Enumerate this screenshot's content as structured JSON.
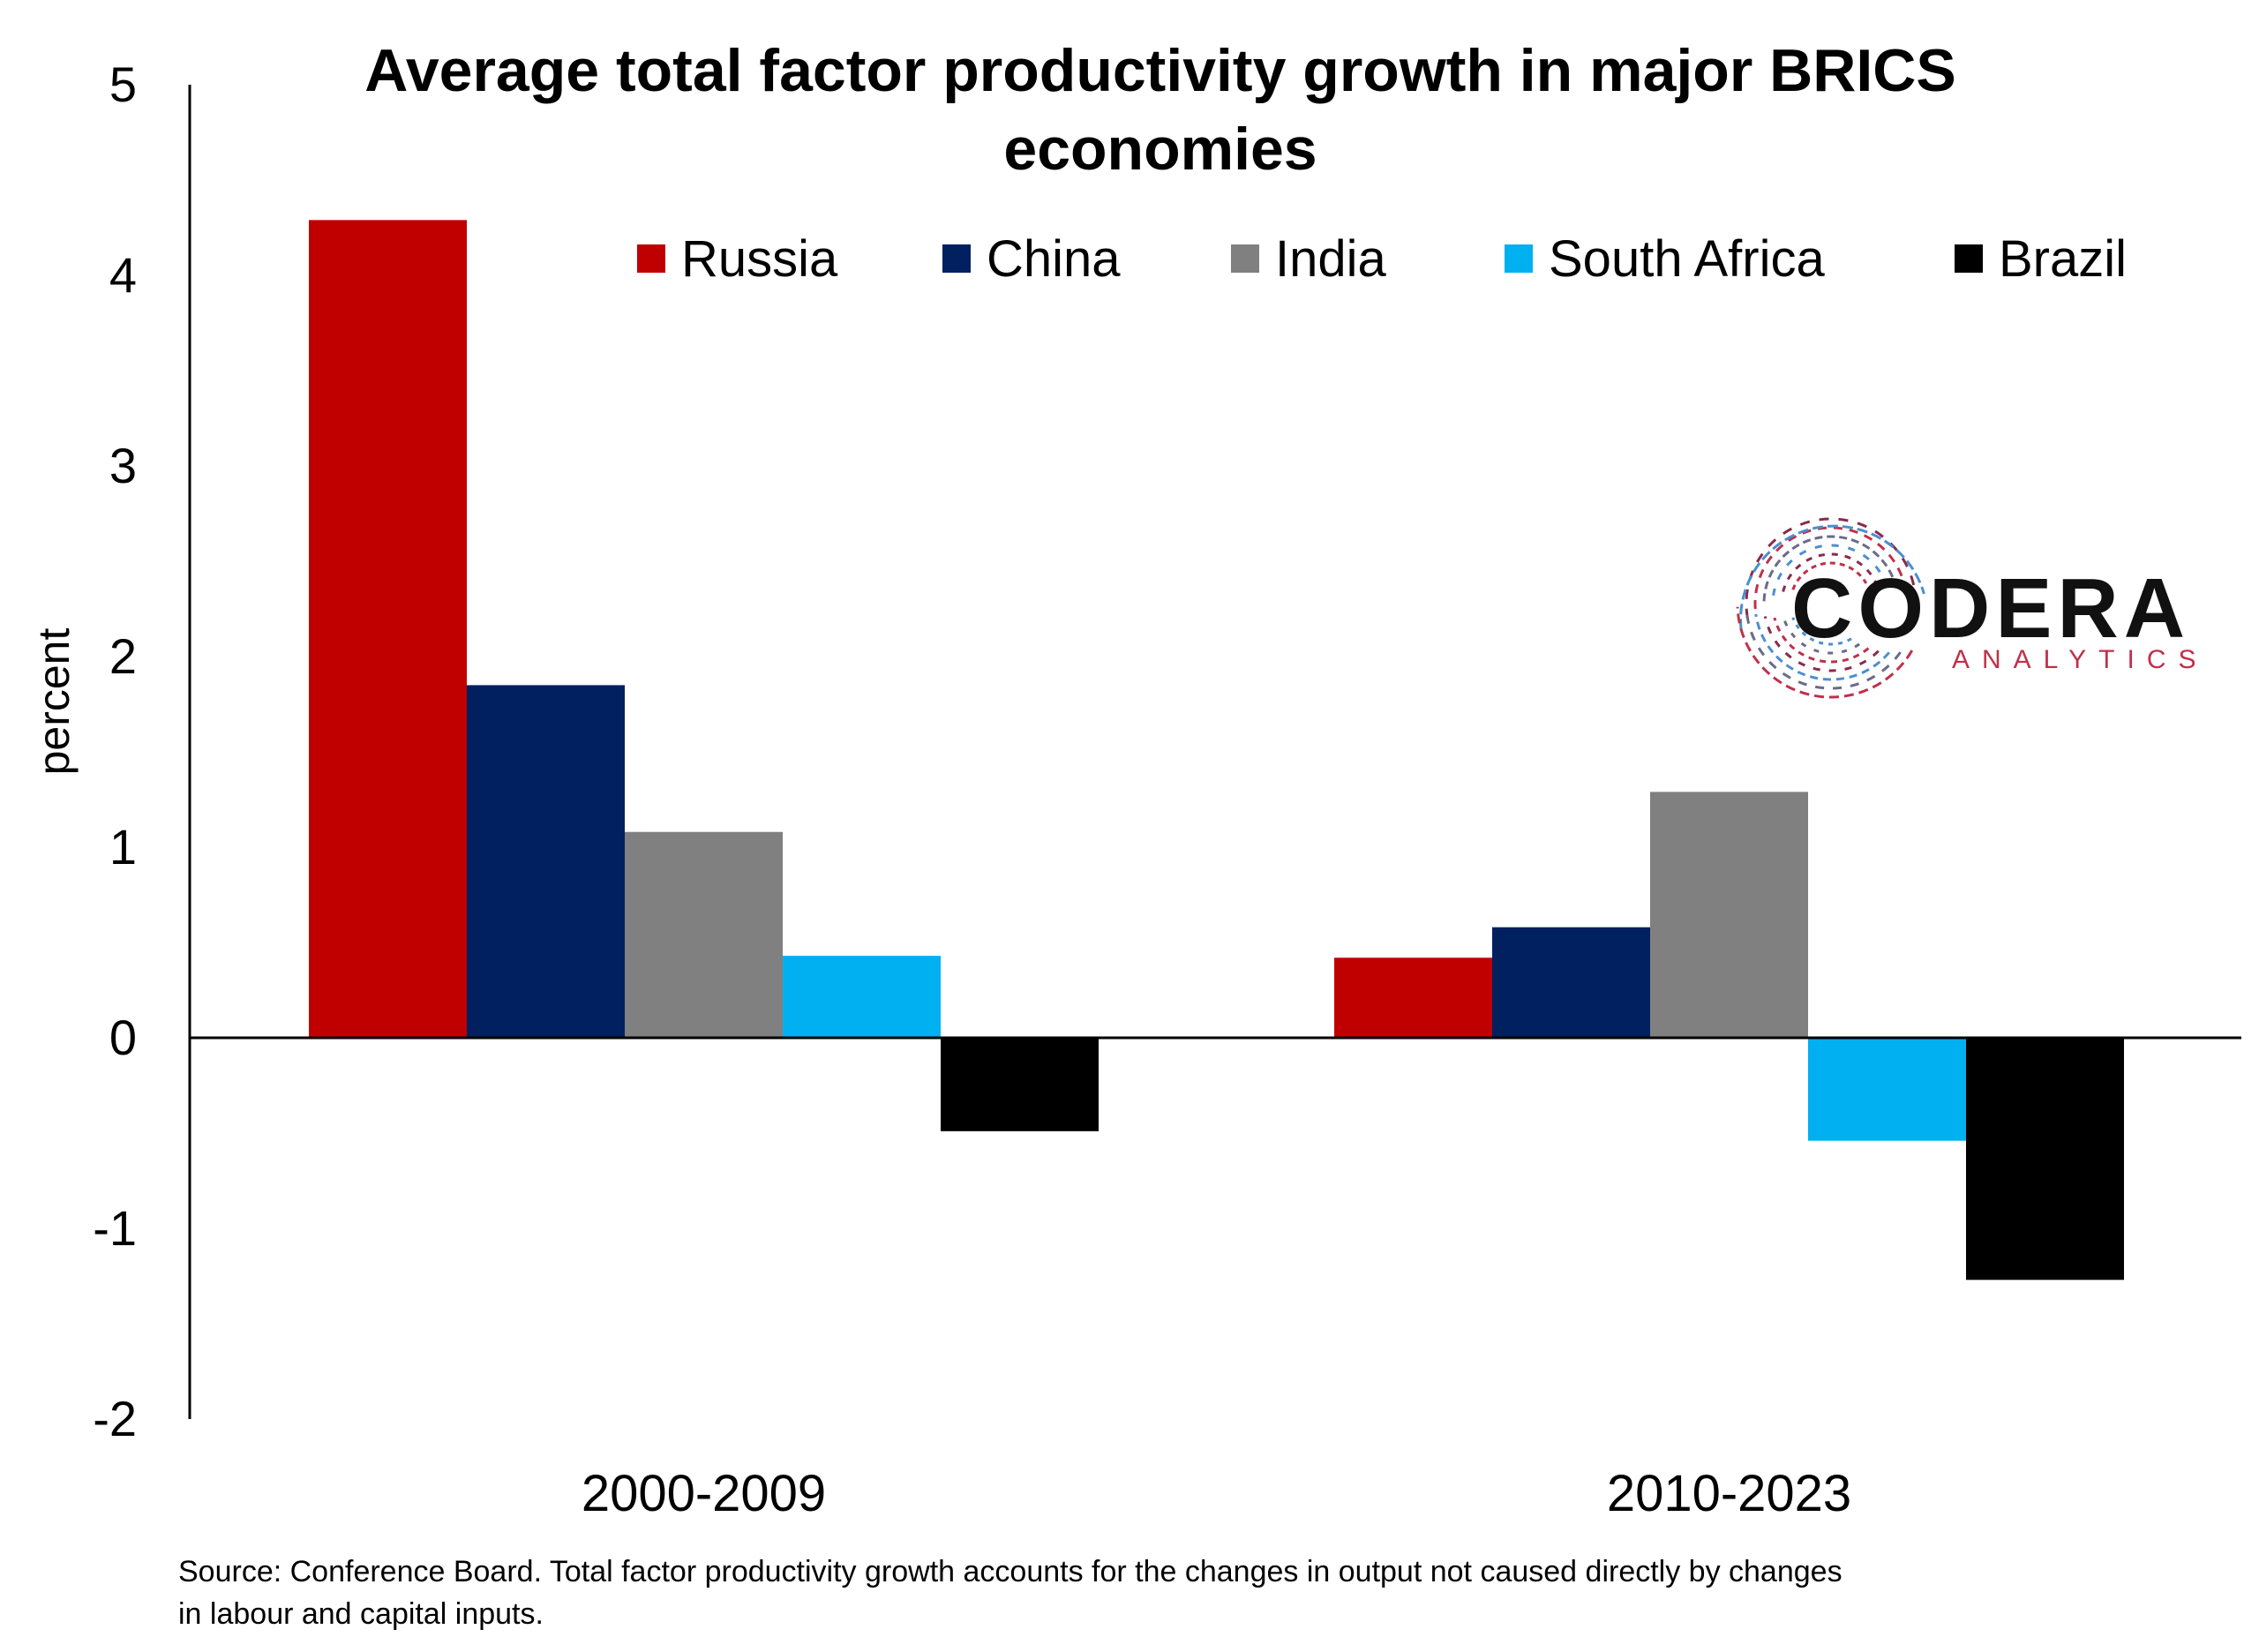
{
  "chart_data": {
    "type": "bar",
    "title_lines": [
      "Average total factor productivity growth in major BRICS",
      "economies"
    ],
    "xlabel": "",
    "ylabel": "percent",
    "ylim": [
      -2,
      5
    ],
    "yticks": [
      5,
      4,
      3,
      2,
      1,
      0,
      -1,
      -2
    ],
    "categories": [
      "2000-2009",
      "2010-2023"
    ],
    "legend_position": "top",
    "grid": false,
    "series": [
      {
        "name": "Russia",
        "color": "#C00000",
        "values": [
          4.29,
          0.42
        ]
      },
      {
        "name": "China",
        "color": "#002060",
        "values": [
          1.85,
          0.58
        ]
      },
      {
        "name": "India",
        "color": "#808080",
        "values": [
          1.08,
          1.29
        ]
      },
      {
        "name": "South Africa",
        "color": "#00B0F0",
        "values": [
          0.43,
          -0.54
        ]
      },
      {
        "name": "Brazil",
        "color": "#000000",
        "values": [
          -0.49,
          -1.27
        ]
      }
    ],
    "source_lines": [
      "Source: Conference Board. Total factor productivity growth accounts for the changes in output not caused directly by changes",
      "in labour and capital inputs."
    ]
  },
  "logo": {
    "name": "CODERA",
    "tagline": "ANALYTICS",
    "accent_color": "#C0304A",
    "accent_color_2": "#4A8FD0"
  }
}
